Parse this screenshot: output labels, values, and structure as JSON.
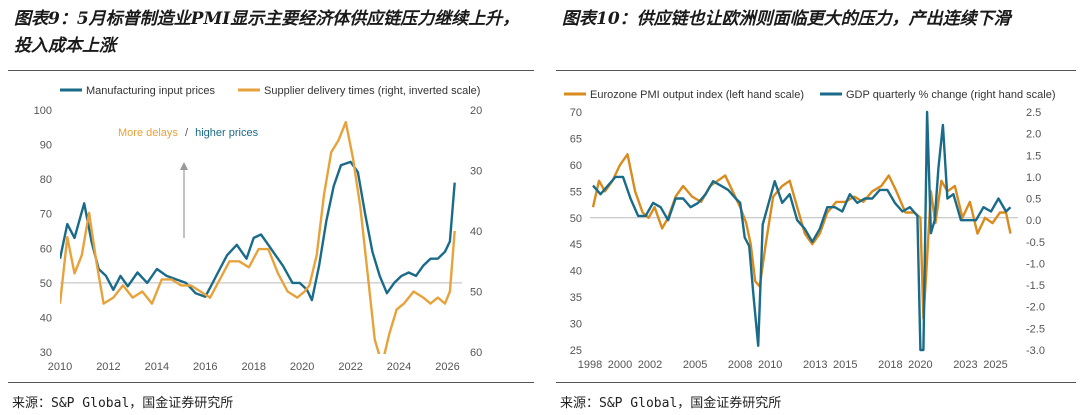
{
  "colors": {
    "teal": "#1a6b8a",
    "orange": "#e8a23c",
    "dark_orange": "#d98b1e",
    "grid": "#bbbbbb",
    "axis_text": "#555555"
  },
  "panels": {
    "left": {
      "title": "图表9：5月标普制造业PMI显示主要经济体供应链压力继续上升，投入成本上涨",
      "source": "来源：S&P Global，国金证券研究所",
      "annotation": "More delays / higher prices",
      "annotation_part1": "More delays",
      "annotation_sep": "/",
      "annotation_part2": "higher prices"
    },
    "right": {
      "title": "图表10：供应链也让欧洲则面临更大的压力，产出连续下滑",
      "source": "来源：S&P Global，国金证券研究所"
    }
  },
  "chart_data": [
    {
      "type": "line",
      "legend": [
        "Manufacturing input prices",
        "Supplier delivery times (right, inverted scale)"
      ],
      "legend_placement": "top",
      "xlim": [
        2010,
        2026.6
      ],
      "x_ticks": [
        "2010",
        "2012",
        "2014",
        "2016",
        "2018",
        "2020",
        "2022",
        "2024",
        "2026"
      ],
      "ylim": [
        30,
        100
      ],
      "y_ticks": [
        "100",
        "90",
        "80",
        "70",
        "60",
        "50",
        "40",
        "30"
      ],
      "y2lim": [
        20,
        60
      ],
      "y2_inverted": true,
      "y2_ticks": [
        "20",
        "30",
        "40",
        "50",
        "60"
      ],
      "reference_line": 50,
      "series": [
        {
          "name": "Manufacturing input prices",
          "axis": "left",
          "x": [
            2010.0,
            2010.3,
            2010.6,
            2011.0,
            2011.3,
            2011.6,
            2011.9,
            2012.2,
            2012.5,
            2012.8,
            2013.2,
            2013.6,
            2014.0,
            2014.4,
            2014.8,
            2015.2,
            2015.6,
            2016.0,
            2016.3,
            2016.6,
            2016.9,
            2017.3,
            2017.7,
            2018.0,
            2018.3,
            2018.6,
            2018.9,
            2019.2,
            2019.6,
            2019.9,
            2020.2,
            2020.4,
            2020.7,
            2021.0,
            2021.3,
            2021.6,
            2022.0,
            2022.3,
            2022.6,
            2022.9,
            2023.2,
            2023.5,
            2023.8,
            2024.1,
            2024.4,
            2024.7,
            2025.0,
            2025.3,
            2025.6,
            2025.9,
            2026.1,
            2026.3
          ],
          "y": [
            57,
            67,
            63,
            73,
            62,
            54,
            52,
            48,
            52,
            49,
            53,
            50,
            54,
            52,
            51,
            50,
            47,
            46,
            50,
            54,
            58,
            61,
            57,
            63,
            64,
            61,
            58,
            55,
            50,
            50,
            48,
            45,
            55,
            68,
            78,
            84,
            85,
            82,
            70,
            59,
            52,
            47,
            50,
            52,
            53,
            52,
            55,
            57,
            57,
            59,
            62,
            79
          ]
        },
        {
          "name": "Supplier delivery times (right, inverted scale)",
          "axis": "right",
          "x": [
            2010.0,
            2010.3,
            2010.6,
            2010.9,
            2011.2,
            2011.5,
            2011.8,
            2012.2,
            2012.6,
            2013.0,
            2013.4,
            2013.8,
            2014.2,
            2014.6,
            2015.0,
            2015.4,
            2015.8,
            2016.2,
            2016.6,
            2017.0,
            2017.4,
            2017.8,
            2018.2,
            2018.6,
            2019.0,
            2019.4,
            2019.8,
            2020.1,
            2020.3,
            2020.6,
            2020.9,
            2021.2,
            2021.5,
            2021.8,
            2022.1,
            2022.4,
            2022.7,
            2023.0,
            2023.3,
            2023.6,
            2023.9,
            2024.2,
            2024.6,
            2025.0,
            2025.3,
            2025.6,
            2025.9,
            2026.1,
            2026.3
          ],
          "y": [
            52,
            41,
            47,
            44,
            37,
            45,
            52,
            51,
            49,
            51,
            50,
            52,
            48,
            48,
            49,
            49,
            50,
            51,
            48,
            45,
            45,
            46,
            43,
            43,
            47,
            50,
            51,
            50,
            49,
            44,
            34,
            27,
            25,
            22,
            28,
            36,
            47,
            58,
            62,
            57,
            53,
            52,
            50,
            51,
            52,
            51,
            52,
            50,
            40
          ]
        }
      ]
    },
    {
      "type": "line",
      "legend": [
        "Eurozone PMI output index (left hand scale)",
        "GDP quarterly % change (right hand scale)"
      ],
      "legend_placement": "top",
      "xlim": [
        1998,
        2026.5
      ],
      "x_ticks": [
        "1998",
        "2000",
        "2002",
        "2005",
        "2008",
        "2010",
        "2013",
        "2015",
        "2018",
        "2020",
        "2023",
        "2025"
      ],
      "ylim": [
        25,
        70
      ],
      "y_ticks": [
        "70",
        "65",
        "60",
        "55",
        "50",
        "45",
        "40",
        "35",
        "30",
        "25"
      ],
      "y2lim": [
        -3.0,
        2.5
      ],
      "y2_ticks": [
        "2.5",
        "2.0",
        "1.5",
        "1.0",
        "0.5",
        "0.0",
        "-0.5",
        "-1.0",
        "-1.5",
        "-2.0",
        "-2.5",
        "-3.0"
      ],
      "reference_line": 50,
      "series": [
        {
          "name": "Eurozone PMI output index (left hand scale)",
          "axis": "left",
          "x": [
            1998.2,
            1998.6,
            1999.0,
            1999.5,
            2000.0,
            2000.5,
            2001.0,
            2001.5,
            2001.9,
            2002.3,
            2002.8,
            2003.2,
            2003.7,
            2004.2,
            2004.8,
            2005.4,
            2006.0,
            2006.5,
            2007.0,
            2007.5,
            2008.0,
            2008.4,
            2008.7,
            2009.0,
            2009.3,
            2009.7,
            2010.2,
            2010.8,
            2011.3,
            2011.8,
            2012.3,
            2012.8,
            2013.3,
            2013.8,
            2014.4,
            2015.0,
            2015.6,
            2016.2,
            2016.8,
            2017.4,
            2017.9,
            2018.4,
            2019.0,
            2019.6,
            2020.0,
            2020.2,
            2020.4,
            2020.7,
            2021.0,
            2021.4,
            2021.8,
            2022.3,
            2022.8,
            2023.3,
            2023.8,
            2024.3,
            2024.8,
            2025.3,
            2025.7,
            2026.0
          ],
          "y": [
            52,
            57,
            55,
            57,
            60,
            62,
            55,
            51,
            50,
            52,
            48,
            50,
            54,
            56,
            54,
            53,
            56,
            57,
            58,
            55,
            52,
            49,
            45,
            38,
            37,
            45,
            54,
            56,
            57,
            52,
            47,
            45,
            47,
            51,
            53,
            53,
            54,
            53,
            55,
            56,
            58,
            55,
            51,
            51,
            50,
            31,
            40,
            55,
            49,
            57,
            55,
            56,
            50,
            53,
            47,
            50,
            49,
            51,
            51,
            47
          ]
        },
        {
          "name": "GDP quarterly % change (right hand scale)",
          "axis": "right",
          "x": [
            1998.2,
            1998.7,
            1999.2,
            1999.7,
            2000.2,
            2000.7,
            2001.2,
            2001.7,
            2002.2,
            2002.7,
            2003.2,
            2003.7,
            2004.2,
            2004.7,
            2005.2,
            2005.7,
            2006.2,
            2006.7,
            2007.2,
            2007.7,
            2008.0,
            2008.3,
            2008.6,
            2008.9,
            2009.2,
            2009.5,
            2009.9,
            2010.3,
            2010.8,
            2011.3,
            2011.8,
            2012.3,
            2012.8,
            2013.3,
            2013.8,
            2014.3,
            2014.8,
            2015.3,
            2015.8,
            2016.3,
            2016.8,
            2017.3,
            2017.8,
            2018.3,
            2018.8,
            2019.3,
            2019.8,
            2020.0,
            2020.2,
            2020.45,
            2020.7,
            2020.95,
            2021.2,
            2021.5,
            2021.8,
            2022.2,
            2022.7,
            2023.2,
            2023.7,
            2024.2,
            2024.7,
            2025.2,
            2025.7,
            2026.0
          ],
          "y": [
            0.8,
            0.6,
            0.8,
            1.0,
            1.0,
            0.5,
            0.1,
            0.1,
            0.4,
            0.3,
            0.0,
            0.5,
            0.5,
            0.3,
            0.4,
            0.6,
            0.9,
            0.8,
            0.7,
            0.5,
            0.4,
            -0.4,
            -0.6,
            -1.8,
            -2.9,
            -0.1,
            0.4,
            0.9,
            0.4,
            0.6,
            0.0,
            -0.2,
            -0.5,
            -0.2,
            0.3,
            0.3,
            0.2,
            0.6,
            0.4,
            0.5,
            0.5,
            0.7,
            0.7,
            0.4,
            0.2,
            0.3,
            0.1,
            -3.0,
            -3.0,
            2.5,
            -0.3,
            0.0,
            1.2,
            2.2,
            0.5,
            0.6,
            0.0,
            0.0,
            0.0,
            0.3,
            0.2,
            0.5,
            0.2,
            0.3
          ]
        }
      ]
    }
  ]
}
